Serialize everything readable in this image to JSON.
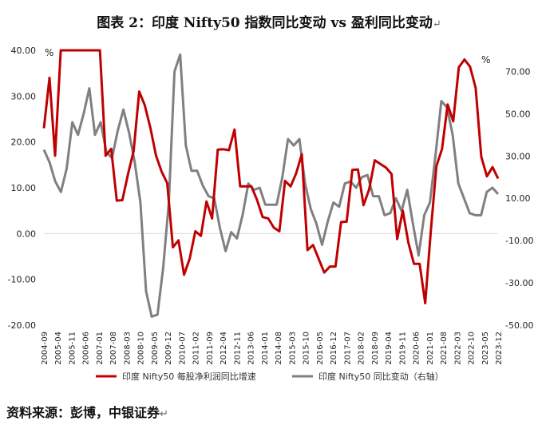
{
  "header": {
    "title": "图表 2：印度 Nifty50 指数同比变动 vs 盈利同比变动",
    "para_mark": "↵"
  },
  "footer": {
    "source": "资料来源：彭博，中银证券",
    "para_mark": "↵"
  },
  "chart_data": {
    "type": "line",
    "title": "图表 2：印度 Nifty50 指数同比变动 vs 盈利同比变动",
    "left_axis": {
      "unit": "%",
      "ylim": [
        -20,
        40
      ],
      "ticks": [
        "40.00",
        "30.00",
        "20.00",
        "10.00",
        "0.00",
        "-10.00",
        "-20.00"
      ],
      "tick_values": [
        40,
        30,
        20,
        10,
        0,
        -10,
        -20
      ]
    },
    "right_axis": {
      "unit": "%",
      "ylim": [
        -50,
        80
      ],
      "ticks": [
        "70.00",
        "50.00",
        "30.00",
        "10.00",
        "-10.00",
        "-30.00",
        "-50.00"
      ],
      "tick_values": [
        70,
        50,
        30,
        10,
        -10,
        -30,
        -50
      ]
    },
    "x_ticks": [
      "2004-09",
      "2005-04",
      "2005-11",
      "2006-06",
      "2007-01",
      "2007-08",
      "2008-03",
      "2008-10",
      "2009-05",
      "2009-12",
      "2010-07",
      "2011-02",
      "2011-09",
      "2012-04",
      "2012-11",
      "2013-06",
      "2014-01",
      "2014-08",
      "2015-03",
      "2015-10",
      "2016-05",
      "2016-12",
      "2017-07",
      "2018-02",
      "2018-09",
      "2019-04",
      "2019-11",
      "2020-06",
      "2021-01",
      "2021-08",
      "2022-03",
      "2022-10",
      "2023-05",
      "2023-12"
    ],
    "series": [
      {
        "name": "印度 Nifty50 每股净利润同比增速",
        "axis": "left",
        "color": "#c00000",
        "values": [
          23,
          34,
          17,
          40,
          40,
          40,
          40,
          40,
          40,
          40,
          40,
          17,
          18.5,
          7.2,
          7.3,
          13,
          18,
          31,
          28,
          23,
          17,
          13.5,
          11,
          -3,
          -1.5,
          -9,
          -5.5,
          0.5,
          -0.5,
          7,
          3.3,
          18.3,
          18.4,
          18.2,
          22.7,
          10.3,
          10.3,
          10.3,
          7.4,
          3.6,
          3.3,
          1.3,
          0.5,
          11.5,
          10.3,
          13.2,
          17.3,
          -3.6,
          -2.5,
          -5.5,
          -8.5,
          -7.2,
          -7.2,
          2.5,
          2.6,
          13.9,
          14,
          6.2,
          9.6,
          16,
          15.2,
          14.4,
          13,
          -1.2,
          5,
          -2,
          -6.6,
          -6.6,
          -15.2,
          0.5,
          14.7,
          18.5,
          28.2,
          24.5,
          36.3,
          38,
          36.4,
          31.8,
          16.8,
          12.5,
          14.5,
          12
        ]
      },
      {
        "name": "印度 Nifty50 同比变动（右轴）",
        "axis": "right",
        "color": "#808080",
        "values": [
          33,
          27,
          18,
          13,
          24,
          46,
          40,
          50,
          62,
          40,
          46,
          32,
          29,
          42,
          52,
          41,
          27,
          8,
          -34,
          -46,
          -45,
          -23,
          8,
          70,
          78,
          35,
          23,
          23,
          16,
          11,
          10,
          -4,
          -15,
          -6,
          -9,
          2,
          17,
          14,
          15,
          7,
          7,
          7,
          20,
          38,
          35,
          38,
          17,
          5,
          -2,
          -12,
          -1,
          8,
          6,
          17,
          18,
          15,
          20,
          21,
          11,
          11,
          2,
          3,
          10,
          4,
          14,
          -2,
          -17,
          2,
          8,
          31,
          56,
          53,
          40,
          17,
          10,
          3,
          2,
          2,
          13,
          15,
          12
        ]
      }
    ]
  }
}
